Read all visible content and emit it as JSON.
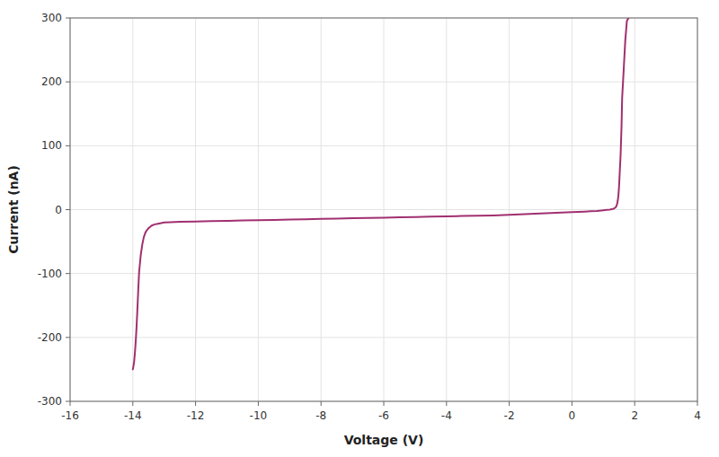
{
  "chart_data": {
    "type": "line",
    "xlabel": "Voltage (V)",
    "ylabel": "Current (nA)",
    "x": [
      -14.0,
      -13.98,
      -13.96,
      -13.94,
      -13.92,
      -13.9,
      -13.88,
      -13.86,
      -13.84,
      -13.82,
      -13.8,
      -13.75,
      -13.7,
      -13.65,
      -13.6,
      -13.55,
      -13.5,
      -13.45,
      -13.4,
      -13.3,
      -13.2,
      -13.1,
      -13.0,
      -12.8,
      -12.5,
      -12.0,
      -11.5,
      -11.0,
      -10.5,
      -10.0,
      -9.5,
      -9.0,
      -8.5,
      -8.0,
      -7.5,
      -7.0,
      -6.5,
      -6.0,
      -5.5,
      -5.0,
      -4.5,
      -4.0,
      -3.5,
      -3.0,
      -2.5,
      -2.0,
      -1.5,
      -1.0,
      -0.5,
      0.0,
      0.2,
      0.4,
      0.6,
      0.8,
      1.0,
      1.1,
      1.2,
      1.3,
      1.35,
      1.4,
      1.42,
      1.44,
      1.46,
      1.48,
      1.5,
      1.52,
      1.55,
      1.58,
      1.6,
      1.65,
      1.7,
      1.75,
      1.8
    ],
    "values": [
      -250,
      -245,
      -238,
      -228,
      -215,
      -200,
      -182,
      -162,
      -140,
      -118,
      -98,
      -72,
      -55,
      -43,
      -36,
      -32,
      -29,
      -27,
      -25,
      -23,
      -22,
      -21,
      -20,
      -19.5,
      -19,
      -18.5,
      -18,
      -17.5,
      -17,
      -16.5,
      -16,
      -15.5,
      -15,
      -14.5,
      -14,
      -13.5,
      -13,
      -12.5,
      -12,
      -11.5,
      -11,
      -10.5,
      -10,
      -9.5,
      -9,
      -8,
      -7,
      -6,
      -5,
      -4,
      -3.5,
      -3,
      -2.5,
      -2,
      -1,
      -0.5,
      0,
      1,
      2,
      4,
      6,
      9,
      14,
      22,
      35,
      55,
      85,
      130,
      175,
      220,
      265,
      295,
      300
    ],
    "color": "#a03070",
    "xlim": [
      -16,
      4
    ],
    "ylim": [
      -300,
      300
    ],
    "xticks": [
      -16,
      -14,
      -12,
      -10,
      -8,
      -6,
      -4,
      -2,
      0,
      2,
      4
    ],
    "yticks": [
      -300,
      -200,
      -100,
      0,
      100,
      200,
      300
    ],
    "grid": true
  }
}
